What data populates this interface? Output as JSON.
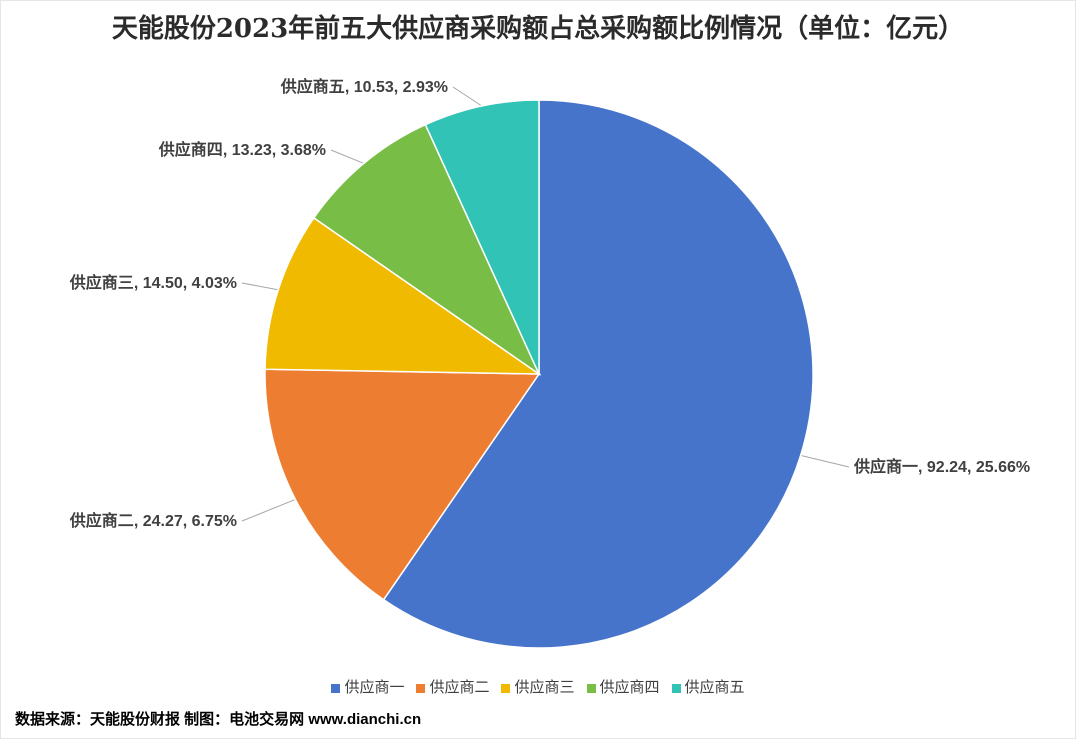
{
  "chart_data": {
    "type": "pie",
    "title": "天能股份2023年前五大供应商采购额占总采购额比例情况（单位：亿元）",
    "categories": [
      "供应商一",
      "供应商二",
      "供应商三",
      "供应商四",
      "供应商五"
    ],
    "values": [
      92.24,
      24.27,
      14.5,
      13.23,
      10.53
    ],
    "percentages": [
      25.66,
      6.75,
      4.03,
      3.68,
      2.93
    ],
    "colors": [
      "#4674CB",
      "#ED7D31",
      "#F0BA00",
      "#78BD45",
      "#31C3B5"
    ],
    "legend_position": "bottom"
  },
  "footer": {
    "text": "数据来源：天能股份财报 制图：电池交易网 www.dianchi.cn"
  }
}
